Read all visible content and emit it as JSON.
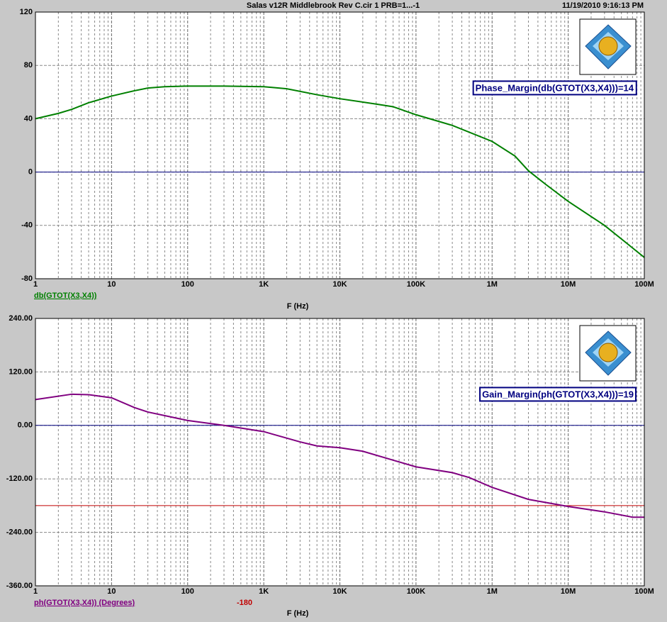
{
  "header": {
    "title": "Salas v12R Middlebrook Rev C.cir 1 PRB=1...-1",
    "timestamp": "11/19/2010 9:16:13 PM"
  },
  "chart_data": [
    {
      "type": "line",
      "x_label": "F (Hz)",
      "x_scale": "log",
      "grid": true,
      "zero_line_color": "#000080",
      "annotation": "Phase_Margin(db(GTOT(X3,X4)))=14",
      "xlim": [
        1,
        100000000
      ],
      "xticks": [
        1,
        10,
        100,
        {
          "value": 1000,
          "label": "1K"
        },
        {
          "value": 10000,
          "label": "10K"
        },
        {
          "value": 100000,
          "label": "100K"
        },
        {
          "value": 1000000,
          "label": "1M"
        },
        {
          "value": 10000000,
          "label": "10M"
        },
        {
          "value": 100000000,
          "label": "100M"
        }
      ],
      "ylim": [
        -80,
        120
      ],
      "yticks": [
        -80,
        -40,
        0,
        40,
        80,
        120
      ],
      "series": [
        {
          "name": "db(GTOT(X3,X4))",
          "color": "#008000",
          "x": [
            1,
            2,
            3,
            5,
            10,
            20,
            30,
            50,
            100,
            300,
            1000,
            2000,
            5000,
            10000,
            30000,
            50000,
            100000,
            300000,
            1000000,
            2000000,
            3000000,
            5000000,
            10000000,
            30000000,
            100000000
          ],
          "values": [
            40,
            44,
            47,
            52,
            57,
            61,
            63,
            64,
            64.5,
            64.5,
            64,
            62.5,
            58,
            55,
            51,
            49,
            43,
            35,
            23,
            12,
            1,
            -9,
            -22,
            -40,
            -64
          ]
        }
      ]
    },
    {
      "type": "line",
      "x_label": "F (Hz)",
      "x_scale": "log",
      "grid": true,
      "zero_line_color": "#000080",
      "annotation": "Gain_Margin(ph(GTOT(X3,X4)))=19",
      "reference_line": {
        "value": -180,
        "color": "#c00000"
      },
      "xlim": [
        1,
        100000000
      ],
      "xticks": [
        1,
        10,
        100,
        {
          "value": 1000,
          "label": "1K"
        },
        {
          "value": 10000,
          "label": "10K"
        },
        {
          "value": 100000,
          "label": "100K"
        },
        {
          "value": 1000000,
          "label": "1M"
        },
        {
          "value": 10000000,
          "label": "10M"
        },
        {
          "value": 100000000,
          "label": "100M"
        }
      ],
      "ylim": [
        -360,
        240
      ],
      "yticks": [
        {
          "value": -360,
          "label": "-360.00"
        },
        {
          "value": -240,
          "label": "-240.00"
        },
        {
          "value": -120,
          "label": "-120.00"
        },
        {
          "value": 0,
          "label": "0.00"
        },
        {
          "value": 120,
          "label": "120.00"
        },
        {
          "value": 240,
          "label": "240.00"
        }
      ],
      "series": [
        {
          "name": "ph(GTOT(X3,X4)) (Degrees)",
          "color": "#800080",
          "x": [
            1,
            3,
            5,
            10,
            20,
            30,
            100,
            300,
            1000,
            3000,
            5000,
            10000,
            20000,
            50000,
            100000,
            300000,
            500000,
            1000000,
            3000000,
            10000000,
            30000000,
            70000000,
            100000000
          ],
          "values": [
            58,
            70,
            69,
            62,
            40,
            30,
            11,
            0,
            -14,
            -37,
            -46,
            -50,
            -58,
            -78,
            -93,
            -106,
            -117,
            -139,
            -166,
            -182,
            -194,
            -206,
            -206
          ]
        }
      ]
    }
  ]
}
